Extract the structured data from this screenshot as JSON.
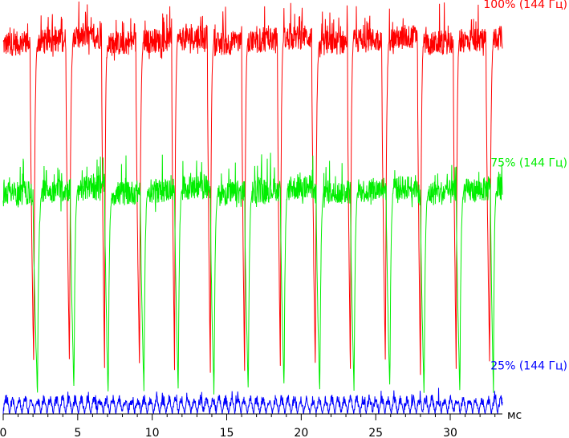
{
  "chart_data": {
    "type": "line",
    "title": "",
    "xlabel": "мс",
    "ylabel": "",
    "xlim": [
      0,
      33.5
    ],
    "ylim": [
      0,
      100
    ],
    "grid": false,
    "x_ticks": [
      "0",
      "5",
      "10",
      "15",
      "20",
      "25",
      "30"
    ],
    "period_ms": 6.944,
    "sample_step_ms": 0.02,
    "series": [
      {
        "name": "100% (144 Гц)",
        "color": "#ff0000",
        "level_high": 92,
        "level_low": 11,
        "fall_ms": [
          1.8,
          4.2,
          6.6,
          8.9,
          11.3,
          13.7,
          16.0,
          18.4,
          20.7,
          23.1,
          25.4,
          27.8,
          30.2,
          32.4
        ],
        "rise_ms": [
          2.3,
          4.7,
          7.0,
          9.4,
          11.7,
          14.1,
          16.4,
          18.8,
          21.2,
          23.5,
          25.9,
          28.2,
          30.6,
          32.9
        ],
        "label_y": 100
      },
      {
        "name": "75% (144 Гц)",
        "color": "#00ee00",
        "level_high": 55,
        "level_low": 5,
        "fall_ms": [
          2.0,
          4.5,
          6.8,
          9.2,
          11.5,
          13.9,
          16.2,
          18.6,
          21.0,
          23.3,
          25.7,
          28.0,
          30.4,
          32.7
        ],
        "rise_ms": [
          2.6,
          5.0,
          7.3,
          9.7,
          12.0,
          14.4,
          16.7,
          19.1,
          21.5,
          23.8,
          26.2,
          28.5,
          30.9,
          33.1
        ],
        "label_y": 61
      },
      {
        "name": "25% (144 Гц)",
        "color": "#0000ff",
        "level_high": 4,
        "level_low": 0,
        "fall_ms": [],
        "rise_ms": [],
        "label_y": 11
      }
    ]
  }
}
